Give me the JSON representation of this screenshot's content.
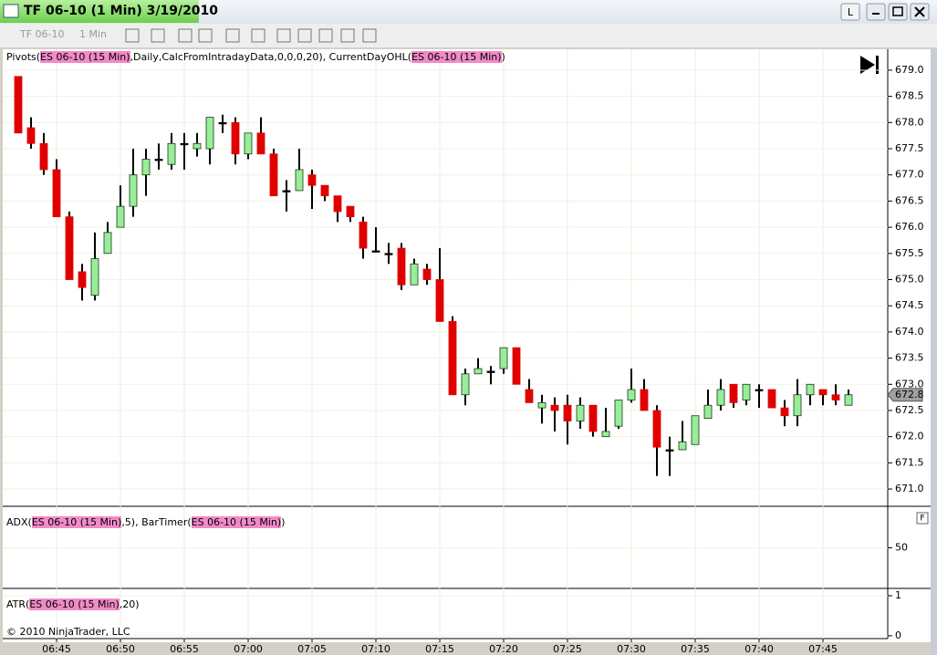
{
  "window": {
    "title": "TF 06-10 (1 Min)  3/19/2010",
    "button": "L"
  },
  "toolbar": {
    "instrument": "TF 06-10",
    "interval": "1 Min"
  },
  "chart_data": [
    {
      "type": "candlestick",
      "categories": [
        null,
        null,
        null,
        "06:45",
        null,
        null,
        null,
        null,
        "06:50",
        null,
        null,
        null,
        null,
        "06:55",
        null,
        null,
        null,
        null,
        "07:00",
        null,
        null,
        null,
        null,
        "07:05",
        null,
        null,
        null,
        null,
        "07:10",
        null,
        null,
        null,
        null,
        "07:15",
        null,
        null,
        null,
        null,
        "07:20",
        null,
        null,
        null,
        null,
        "07:25",
        null,
        null,
        null,
        null,
        "07:30",
        null,
        null,
        null,
        null,
        "07:35",
        null,
        null,
        null,
        null,
        "07:40",
        null,
        null,
        null,
        null,
        "07:45",
        null,
        null
      ],
      "open": [
        678.88,
        677.9,
        677.6,
        677.1,
        676.2,
        675.15,
        674.7,
        675.5,
        676.0,
        676.4,
        677.0,
        677.3,
        677.2,
        677.6,
        677.5,
        677.5,
        678.0,
        678.0,
        677.4,
        677.8,
        677.4,
        676.7,
        676.7,
        677.0,
        676.8,
        676.6,
        676.4,
        676.1,
        675.55,
        675.5,
        675.6,
        674.9,
        675.2,
        675.0,
        674.2,
        672.8,
        673.2,
        673.25,
        673.3,
        673.7,
        672.9,
        672.55,
        672.6,
        672.6,
        672.3,
        672.6,
        672.0,
        672.2,
        672.7,
        672.9,
        672.5,
        671.75,
        671.75,
        671.85,
        672.35,
        672.6,
        673.0,
        672.7,
        672.9,
        672.9,
        672.55,
        672.4,
        672.8,
        672.9,
        672.8,
        672.6
      ],
      "high": [
        678.88,
        678.1,
        677.8,
        677.3,
        676.3,
        675.3,
        675.9,
        676.1,
        676.8,
        677.5,
        677.5,
        677.6,
        677.8,
        677.8,
        677.8,
        678.1,
        678.15,
        678.1,
        677.8,
        678.1,
        677.5,
        676.9,
        677.5,
        677.1,
        676.8,
        676.6,
        676.4,
        676.2,
        676.0,
        675.7,
        675.7,
        675.4,
        675.3,
        675.6,
        674.3,
        673.3,
        673.5,
        673.35,
        673.7,
        673.7,
        673.1,
        672.8,
        672.75,
        672.8,
        672.75,
        672.6,
        672.55,
        672.7,
        673.3,
        673.1,
        672.6,
        672.0,
        672.3,
        672.4,
        672.9,
        673.1,
        673.0,
        673.0,
        673.0,
        672.9,
        672.7,
        673.1,
        673.0,
        672.9,
        673.0,
        672.9
      ],
      "low": [
        677.8,
        677.5,
        677.0,
        676.2,
        675.0,
        674.6,
        674.6,
        675.5,
        676.0,
        676.2,
        676.6,
        677.1,
        677.1,
        677.1,
        677.35,
        677.2,
        677.8,
        677.2,
        677.3,
        677.4,
        676.6,
        676.3,
        676.7,
        676.35,
        676.5,
        676.1,
        676.1,
        675.4,
        675.55,
        675.3,
        674.8,
        674.9,
        674.9,
        674.2,
        672.8,
        672.6,
        673.2,
        673.0,
        673.2,
        673.0,
        672.65,
        672.25,
        672.1,
        671.85,
        672.15,
        672.0,
        672.0,
        672.15,
        672.65,
        672.5,
        671.25,
        671.25,
        671.75,
        671.85,
        672.35,
        672.5,
        672.55,
        672.6,
        672.55,
        672.55,
        672.2,
        672.2,
        672.6,
        672.6,
        672.6,
        672.6
      ],
      "close": [
        677.8,
        677.6,
        677.1,
        676.2,
        675.0,
        674.85,
        675.4,
        675.9,
        676.4,
        677.0,
        677.3,
        677.3,
        677.6,
        677.6,
        677.6,
        678.1,
        678.0,
        677.4,
        677.8,
        677.4,
        676.6,
        676.7,
        677.1,
        676.8,
        676.6,
        676.3,
        676.2,
        675.6,
        675.55,
        675.5,
        674.9,
        675.3,
        675.0,
        674.2,
        672.8,
        673.2,
        673.3,
        673.25,
        673.7,
        673.0,
        672.65,
        672.65,
        672.5,
        672.3,
        672.6,
        672.1,
        672.1,
        672.7,
        672.9,
        672.5,
        671.8,
        671.75,
        671.9,
        672.4,
        672.6,
        672.9,
        672.65,
        673.0,
        672.9,
        672.55,
        672.4,
        672.8,
        673.0,
        672.8,
        672.7,
        672.8
      ],
      "up_color": "#98ee98",
      "down_color": "#e00000",
      "doji_color": "#000000",
      "ylim": [
        670.67,
        679.33
      ],
      "yticks": [
        {
          "value": 671,
          "label": "671.0"
        },
        {
          "value": 671.5,
          "label": "671.5"
        },
        {
          "value": 672,
          "label": "672.0"
        },
        {
          "value": 672.5,
          "label": "672.5"
        },
        {
          "value": 673,
          "label": "673.0"
        },
        {
          "value": 673.5,
          "label": "673.5"
        },
        {
          "value": 674,
          "label": "674.0"
        },
        {
          "value": 674.5,
          "label": "674.5"
        },
        {
          "value": 675,
          "label": "675.0"
        },
        {
          "value": 675.5,
          "label": "675.5"
        },
        {
          "value": 676,
          "label": "676.0"
        },
        {
          "value": 676.5,
          "label": "676.5"
        },
        {
          "value": 677,
          "label": "677.0"
        },
        {
          "value": 677.5,
          "label": "677.5"
        },
        {
          "value": 678,
          "label": "678.0"
        },
        {
          "value": 678.5,
          "label": "678.5"
        },
        {
          "value": 679,
          "label": "679.0"
        }
      ],
      "grid": true,
      "last_price": 672.8,
      "indicator_label": [
        {
          "text": "Pivots("
        },
        {
          "text": "ES 06-10 (15 Min)",
          "highlight": true
        },
        {
          "text": ",Daily,CalcFromIntradayData,0,0,0,20), CurrentDayOHL("
        },
        {
          "text": "ES 06-10 (15 Min)",
          "highlight": true
        },
        {
          "text": ")"
        }
      ]
    },
    {
      "type": "indicator",
      "ylim": [
        0,
        100
      ],
      "yticks": [
        50
      ],
      "grid": true,
      "panel_button": "F",
      "indicator_label": [
        {
          "text": "ADX("
        },
        {
          "text": "ES 06-10 (15 Min)",
          "highlight": true
        },
        {
          "text": ",5), BarTimer("
        },
        {
          "text": "ES 06-10 (15 Min)",
          "highlight": true
        },
        {
          "text": ")"
        }
      ]
    },
    {
      "type": "indicator",
      "ylim": [
        -0.07,
        1.16
      ],
      "yticks": [
        1,
        0
      ],
      "grid": true,
      "indicator_label": [
        {
          "text": "ATR("
        },
        {
          "text": "ES 06-10 (15 Min)",
          "highlight": true
        },
        {
          "text": ",20)"
        }
      ]
    }
  ],
  "footer": {
    "copyright": "© 2010 NinjaTrader, LLC"
  }
}
